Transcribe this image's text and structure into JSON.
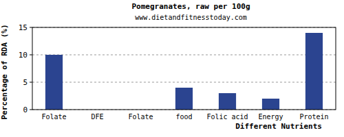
{
  "chart_data": {
    "type": "bar",
    "title": "Pomegranates, raw per 100g",
    "subtitle": "www.dietandfitnesstoday.com",
    "xlabel": "Different Nutrients",
    "ylabel": "Percentage of RDA (%)",
    "categories": [
      "Folate",
      "DFE",
      "Folate",
      "food",
      "Folic acid",
      "Energy",
      "Protein"
    ],
    "values": [
      10,
      0,
      0,
      4,
      3,
      2,
      14
    ],
    "color": "#2b4490",
    "ylim": [
      0,
      15
    ],
    "yticks": [
      0,
      5,
      10,
      15
    ],
    "grid": true
  }
}
